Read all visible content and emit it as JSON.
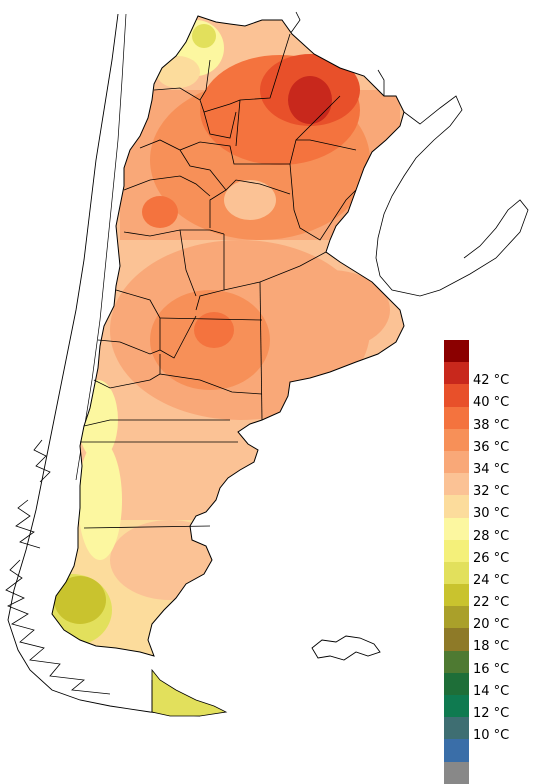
{
  "map": {
    "regions": [
      "Argentina",
      "Chile",
      "Islas Malvinas"
    ]
  },
  "legend": {
    "items": [
      {
        "label": "",
        "color": "#8b0000"
      },
      {
        "label": "42 °C",
        "color": "#c8281c"
      },
      {
        "label": "40 °C",
        "color": "#e8502a"
      },
      {
        "label": "38 °C",
        "color": "#f4733e"
      },
      {
        "label": "36 °C",
        "color": "#f79058"
      },
      {
        "label": "34 °C",
        "color": "#f9a878"
      },
      {
        "label": "32 °C",
        "color": "#fbc295"
      },
      {
        "label": "30 °C",
        "color": "#fcdc9c"
      },
      {
        "label": "28 °C",
        "color": "#fcf7a0"
      },
      {
        "label": "26 °C",
        "color": "#f4f07a"
      },
      {
        "label": "24 °C",
        "color": "#e2e05c"
      },
      {
        "label": "22 °C",
        "color": "#c9c32e"
      },
      {
        "label": "20 °C",
        "color": "#aaa02a"
      },
      {
        "label": "18 °C",
        "color": "#8e7a28"
      },
      {
        "label": "16 °C",
        "color": "#4e7a32"
      },
      {
        "label": "14 °C",
        "color": "#1e6e38"
      },
      {
        "label": "12 °C",
        "color": "#0f7a50"
      },
      {
        "label": "10 °C",
        "color": "#3e6e72"
      },
      {
        "label": "",
        "color": "#3a6ea8"
      },
      {
        "label": "",
        "color": "#888888"
      }
    ]
  }
}
